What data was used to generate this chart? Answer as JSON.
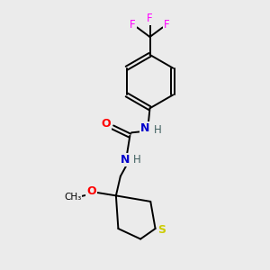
{
  "bg_color": "#ebebeb",
  "atom_colors": {
    "C": "#000000",
    "N": "#0000cc",
    "O": "#ff0000",
    "S": "#cccc00",
    "F": "#ff00ff",
    "H": "#406060"
  },
  "figsize": [
    3.0,
    3.0
  ],
  "dpi": 100,
  "lw": 1.4
}
